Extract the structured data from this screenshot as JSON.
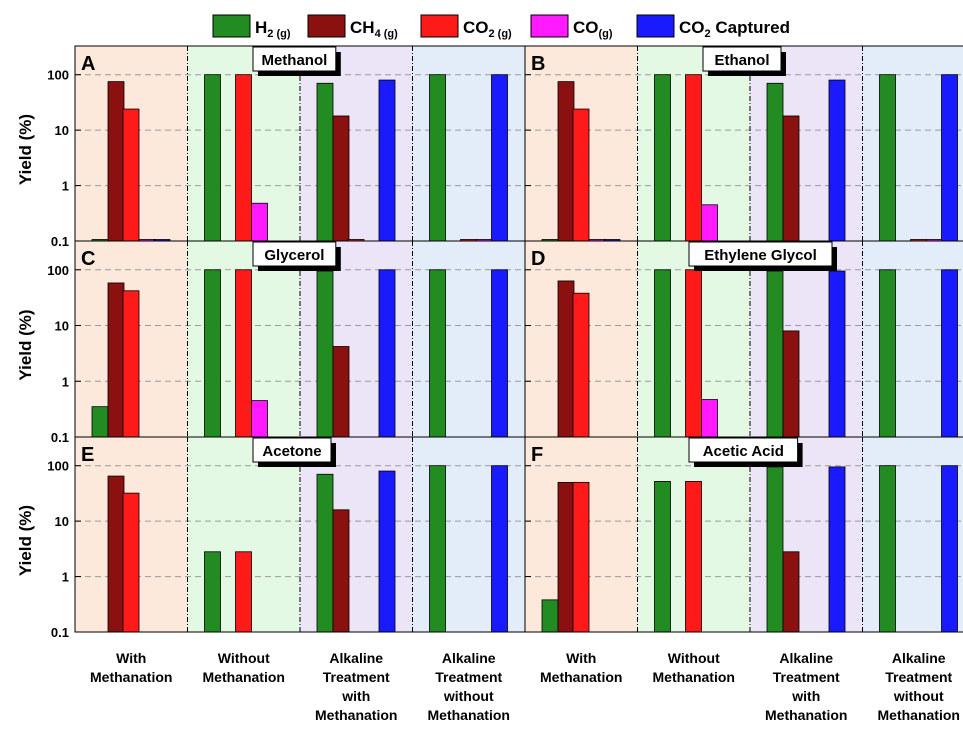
{
  "legend": {
    "items": [
      {
        "key": "h2",
        "base": "H",
        "sub": "2 (g)",
        "color": "#228B22"
      },
      {
        "key": "ch4",
        "base": "CH",
        "sub": "4 (g)",
        "color": "#8B1010"
      },
      {
        "key": "co2",
        "base": "CO",
        "sub": "2 (g)",
        "color": "#FF1A1A"
      },
      {
        "key": "co",
        "base": "CO",
        "sub": "(g)",
        "color": "#FF1AFF"
      },
      {
        "key": "co2cap",
        "base": "CO",
        "sub": "2",
        "tail": " Captured",
        "color": "#1A1AFF"
      }
    ]
  },
  "ylabel": "Yield (%)",
  "yticks": [
    "0.1",
    "1",
    "10",
    "100"
  ],
  "conditions": [
    [
      "With",
      "Methanation"
    ],
    [
      "Without",
      "Methanation"
    ],
    [
      "Alkaline",
      "Treatment",
      "with",
      "Methanation"
    ],
    [
      "Alkaline",
      "Treatment",
      "without",
      "Methanation"
    ]
  ],
  "section_colors": [
    "#FCE9DC",
    "#E4F9E4",
    "#ECE4F7",
    "#E3EDF9"
  ],
  "chart_data": {
    "type": "bar",
    "yscale": "log",
    "ylim": [
      0.1,
      200
    ],
    "grid": "dashed horizontal at 1, 10, 100",
    "series_names": [
      "H2 (g)",
      "CH4 (g)",
      "CO2 (g)",
      "CO(g)",
      "CO2 Captured"
    ],
    "panels": [
      {
        "letter": "A",
        "title": "Methanol",
        "values": [
          [
            0.1,
            75,
            24,
            0.1,
            0.1
          ],
          [
            100,
            0,
            100,
            0.48,
            0
          ],
          [
            70,
            18,
            0.1,
            0,
            80
          ],
          [
            100,
            0,
            0.1,
            0.1,
            100
          ]
        ]
      },
      {
        "letter": "B",
        "title": "Ethanol",
        "values": [
          [
            0.1,
            75,
            24,
            0.1,
            0.1
          ],
          [
            100,
            0,
            100,
            0.45,
            0
          ],
          [
            70,
            18,
            0,
            0,
            80
          ],
          [
            100,
            0,
            0.1,
            0.1,
            100
          ]
        ]
      },
      {
        "letter": "C",
        "title": "Glycerol",
        "values": [
          [
            0.35,
            58,
            42,
            0,
            0
          ],
          [
            100,
            0,
            100,
            0.45,
            0
          ],
          [
            95,
            4.2,
            0,
            0,
            100
          ],
          [
            100,
            0,
            0,
            0,
            100
          ]
        ]
      },
      {
        "letter": "D",
        "title": "Ethylene Glycol",
        "values": [
          [
            0,
            63,
            38,
            0,
            0
          ],
          [
            100,
            0,
            100,
            0.47,
            0
          ],
          [
            95,
            8,
            0,
            0,
            95
          ],
          [
            100,
            0,
            0,
            0,
            100
          ]
        ]
      },
      {
        "letter": "E",
        "title": "Acetone",
        "values": [
          [
            0,
            65,
            32,
            0,
            0
          ],
          [
            2.8,
            0,
            2.8,
            0,
            0
          ],
          [
            70,
            16,
            0,
            0,
            80
          ],
          [
            100,
            0,
            0,
            0,
            100
          ]
        ]
      },
      {
        "letter": "F",
        "title": "Acetic Acid",
        "values": [
          [
            0.38,
            50,
            50,
            0,
            0
          ],
          [
            52,
            0,
            52,
            0,
            0
          ],
          [
            95,
            2.8,
            0,
            0,
            95
          ],
          [
            100,
            0,
            0,
            0,
            100
          ]
        ]
      }
    ]
  }
}
